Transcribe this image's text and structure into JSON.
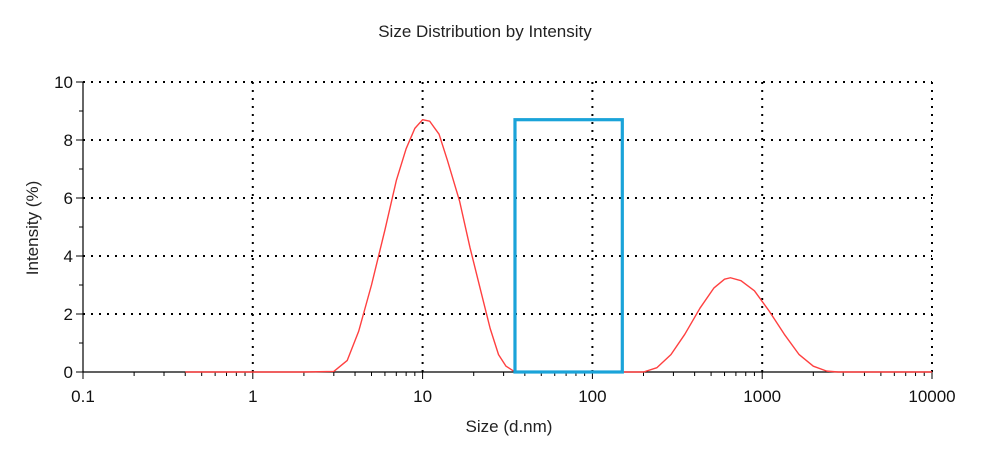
{
  "chart_data": {
    "type": "line",
    "title": "Size Distribution by Intensity",
    "xlabel": "Size (d.nm)",
    "ylabel": "Intensity (%)",
    "x_scale": "log",
    "xlim": [
      0.1,
      10000
    ],
    "ylim": [
      0,
      10
    ],
    "x_ticks": [
      "0.1",
      "1",
      "10",
      "100",
      "1000",
      "10000"
    ],
    "y_ticks": [
      "0",
      "2",
      "4",
      "6",
      "8",
      "10"
    ],
    "grid": true,
    "series": [
      {
        "color": "#ff4040",
        "points": [
          [
            0.4,
            0
          ],
          [
            1,
            0
          ],
          [
            2,
            0
          ],
          [
            3,
            0.02
          ],
          [
            3.6,
            0.4
          ],
          [
            4.2,
            1.4
          ],
          [
            5,
            3.0
          ],
          [
            6,
            4.9
          ],
          [
            7,
            6.6
          ],
          [
            8,
            7.7
          ],
          [
            9,
            8.4
          ],
          [
            10,
            8.7
          ],
          [
            11,
            8.65
          ],
          [
            12.5,
            8.2
          ],
          [
            14,
            7.3
          ],
          [
            16.5,
            5.9
          ],
          [
            19,
            4.3
          ],
          [
            22,
            2.8
          ],
          [
            25,
            1.5
          ],
          [
            28,
            0.6
          ],
          [
            31,
            0.2
          ],
          [
            34,
            0.05
          ],
          [
            37,
            0
          ],
          [
            100,
            0
          ],
          [
            200,
            0
          ],
          [
            240,
            0.15
          ],
          [
            290,
            0.6
          ],
          [
            350,
            1.3
          ],
          [
            430,
            2.2
          ],
          [
            520,
            2.9
          ],
          [
            600,
            3.2
          ],
          [
            650,
            3.25
          ],
          [
            750,
            3.15
          ],
          [
            900,
            2.8
          ],
          [
            1100,
            2.1
          ],
          [
            1350,
            1.3
          ],
          [
            1650,
            0.6
          ],
          [
            2000,
            0.2
          ],
          [
            2400,
            0.03
          ],
          [
            2800,
            0
          ],
          [
            5000,
            0
          ],
          [
            10000,
            0
          ]
        ]
      }
    ],
    "highlight_box": {
      "color": "#1aa3d9",
      "x_range": [
        35,
        150
      ],
      "y_range": [
        0,
        8.7
      ]
    }
  }
}
